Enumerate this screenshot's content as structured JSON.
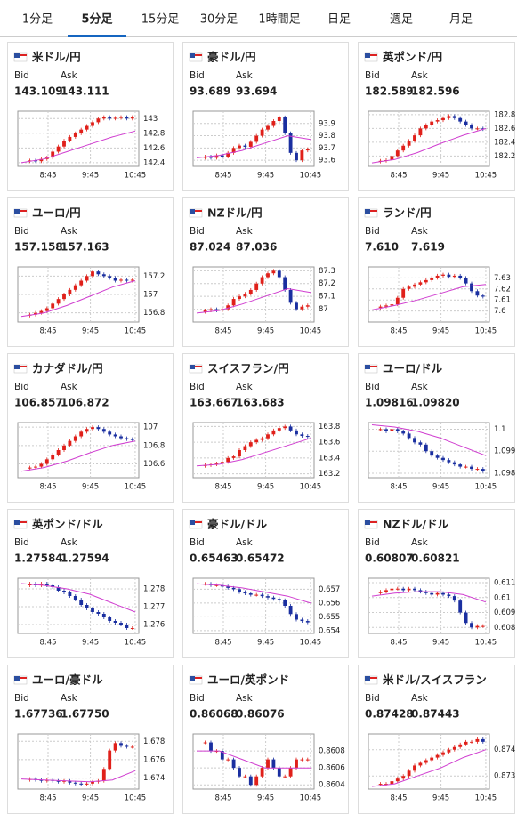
{
  "tabs": {
    "items": [
      "1分足",
      "5分足",
      "15分足",
      "30分足",
      "1時間足",
      "日足",
      "週足",
      "月足"
    ],
    "active": 1
  },
  "labels": {
    "bid": "Bid",
    "ask": "Ask"
  },
  "time_ticks": [
    "8:45",
    "9:45",
    "10:45"
  ],
  "cards": [
    {
      "name": "米ドル/円",
      "color": "#6a2c9a",
      "bid": "143.109",
      "ask": "143.111",
      "ylim": [
        142.35,
        143.1
      ],
      "yticks": [
        142.4,
        142.6,
        142.8,
        143
      ],
      "closes": [
        142.42,
        142.43,
        142.42,
        142.45,
        142.47,
        142.55,
        142.62,
        142.7,
        142.75,
        142.8,
        142.85,
        142.9,
        142.95,
        143.0,
        143.02,
        143.0,
        143.01,
        143.02,
        143.0,
        143.02
      ],
      "ma": [
        142.4,
        142.45,
        142.55,
        142.65,
        142.75,
        142.83
      ]
    },
    {
      "name": "豪ドル/円",
      "color": "#6a2c9a",
      "bid": "93.689",
      "ask": "93.694",
      "ylim": [
        93.55,
        94.0
      ],
      "yticks": [
        93.6,
        93.7,
        93.8,
        93.9
      ],
      "closes": [
        93.62,
        93.63,
        93.62,
        93.64,
        93.63,
        93.66,
        93.7,
        93.72,
        93.71,
        93.75,
        93.8,
        93.85,
        93.88,
        93.92,
        93.95,
        93.82,
        93.66,
        93.6,
        93.68,
        93.69
      ],
      "ma": [
        93.62,
        93.64,
        93.68,
        93.74,
        93.8,
        93.77
      ]
    },
    {
      "name": "英ポンド/円",
      "color": "#6a2c9a",
      "bid": "182.589",
      "ask": "182.596",
      "ylim": [
        182.05,
        182.85
      ],
      "yticks": [
        182.2,
        182.4,
        182.6,
        182.8
      ],
      "closes": [
        182.12,
        182.13,
        182.14,
        182.2,
        182.28,
        182.35,
        182.42,
        182.5,
        182.6,
        182.65,
        182.7,
        182.72,
        182.75,
        182.78,
        182.75,
        182.7,
        182.65,
        182.6,
        182.6,
        182.59
      ],
      "ma": [
        182.1,
        182.15,
        182.25,
        182.38,
        182.5,
        182.6
      ]
    },
    {
      "name": "ユーロ/円",
      "color": "#6a2c9a",
      "bid": "157.158",
      "ask": "157.163",
      "ylim": [
        156.7,
        157.3
      ],
      "yticks": [
        156.8,
        157,
        157.2
      ],
      "closes": [
        156.77,
        156.78,
        156.8,
        156.82,
        156.85,
        156.9,
        156.95,
        157.0,
        157.05,
        157.1,
        157.15,
        157.2,
        157.25,
        157.22,
        157.2,
        157.18,
        157.15,
        157.16,
        157.15,
        157.16
      ],
      "ma": [
        156.76,
        156.8,
        156.88,
        156.98,
        157.08,
        157.15
      ]
    },
    {
      "name": "NZドル/円",
      "color": "#1a4d9c",
      "bid": "87.024",
      "ask": "87.036",
      "ylim": [
        86.9,
        87.33
      ],
      "yticks": [
        87,
        87.1,
        87.2,
        87.3
      ],
      "closes": [
        86.98,
        86.99,
        87.0,
        86.99,
        87.0,
        87.03,
        87.08,
        87.1,
        87.12,
        87.15,
        87.2,
        87.25,
        87.28,
        87.3,
        87.25,
        87.15,
        87.05,
        87.0,
        87.02,
        87.03
      ],
      "ma": [
        86.97,
        86.99,
        87.04,
        87.1,
        87.16,
        87.13
      ]
    },
    {
      "name": "ランド/円",
      "color": "#6a2c9a",
      "bid": "7.610",
      "ask": "7.619",
      "ylim": [
        7.59,
        7.64
      ],
      "yticks": [
        7.6,
        7.61,
        7.62,
        7.63
      ],
      "closes": [
        7.603,
        7.604,
        7.605,
        7.606,
        7.612,
        7.62,
        7.622,
        7.624,
        7.626,
        7.628,
        7.63,
        7.632,
        7.633,
        7.631,
        7.632,
        7.63,
        7.625,
        7.618,
        7.614,
        7.613
      ],
      "ma": [
        7.601,
        7.605,
        7.61,
        7.616,
        7.622,
        7.624
      ]
    },
    {
      "name": "カナダドル/円",
      "color": "#6a2c9a",
      "bid": "106.857",
      "ask": "106.872",
      "ylim": [
        106.45,
        107.05
      ],
      "yticks": [
        106.6,
        106.8,
        107
      ],
      "closes": [
        106.55,
        106.56,
        106.57,
        106.6,
        106.65,
        106.7,
        106.75,
        106.8,
        106.85,
        106.9,
        106.95,
        106.98,
        107.0,
        106.98,
        106.95,
        106.92,
        106.9,
        106.88,
        106.87,
        106.86
      ],
      "ma": [
        106.52,
        106.56,
        106.63,
        106.72,
        106.8,
        106.85
      ]
    },
    {
      "name": "スイスフラン/円",
      "color": "#1a4d9c",
      "bid": "163.667",
      "ask": "163.683",
      "ylim": [
        163.15,
        163.85
      ],
      "yticks": [
        163.2,
        163.4,
        163.6,
        163.8
      ],
      "closes": [
        163.3,
        163.31,
        163.32,
        163.33,
        163.35,
        163.4,
        163.42,
        163.5,
        163.55,
        163.6,
        163.63,
        163.65,
        163.7,
        163.75,
        163.78,
        163.8,
        163.75,
        163.7,
        163.68,
        163.67
      ],
      "ma": [
        163.3,
        163.32,
        163.38,
        163.47,
        163.56,
        163.65
      ]
    },
    {
      "name": "ユーロ/ドル",
      "color": "#6a2c9a",
      "bid": "1.09816",
      "ask": "1.09820",
      "ylim": [
        1.0978,
        1.1003
      ],
      "yticks": [
        1.098,
        1.099,
        1.1
      ],
      "closes": [
        1.1,
        1.1,
        1.0999,
        1.1,
        1.0999,
        1.0998,
        1.0996,
        1.0994,
        1.0993,
        1.099,
        1.0988,
        1.0987,
        1.0986,
        1.0985,
        1.0984,
        1.0983,
        1.0983,
        1.0982,
        1.0982,
        1.0981
      ],
      "ma": [
        1.1002,
        1.1001,
        1.0999,
        1.0996,
        1.0992,
        1.0988
      ]
    },
    {
      "name": "英ポンド/ドル",
      "color": "#1a4d9c",
      "bid": "1.27584",
      "ask": "1.27594",
      "ylim": [
        1.2755,
        1.2786
      ],
      "yticks": [
        1.276,
        1.277,
        1.278
      ],
      "closes": [
        1.2782,
        1.2783,
        1.2782,
        1.2783,
        1.2782,
        1.2781,
        1.2779,
        1.2778,
        1.2776,
        1.2774,
        1.2771,
        1.2769,
        1.2767,
        1.2766,
        1.2764,
        1.2762,
        1.2761,
        1.276,
        1.2758,
        1.2758
      ],
      "ma": [
        1.2783,
        1.2782,
        1.278,
        1.2777,
        1.2772,
        1.2767
      ]
    },
    {
      "name": "豪ドル/ドル",
      "color": "#1a4d9c",
      "bid": "0.65463",
      "ask": "0.65472",
      "ylim": [
        0.6538,
        0.6578
      ],
      "yticks": [
        0.654,
        0.655,
        0.656,
        0.657
      ],
      "closes": [
        0.6574,
        0.6574,
        0.6573,
        0.6573,
        0.6572,
        0.6571,
        0.657,
        0.6568,
        0.6567,
        0.6566,
        0.6566,
        0.6565,
        0.6564,
        0.6563,
        0.6562,
        0.6558,
        0.6552,
        0.6548,
        0.6547,
        0.6546
      ],
      "ma": [
        0.6574,
        0.6573,
        0.6571,
        0.6568,
        0.6565,
        0.656
      ]
    },
    {
      "name": "NZドル/ドル",
      "color": "#1a4d9c",
      "bid": "0.60807",
      "ask": "0.60821",
      "ylim": [
        0.6076,
        0.6113
      ],
      "yticks": [
        0.608,
        0.609,
        0.61,
        0.611
      ],
      "closes": [
        0.6103,
        0.6104,
        0.6105,
        0.6106,
        0.6106,
        0.6105,
        0.6106,
        0.6105,
        0.6104,
        0.6103,
        0.6102,
        0.6103,
        0.6102,
        0.6101,
        0.6098,
        0.609,
        0.6083,
        0.608,
        0.6081,
        0.6081
      ],
      "ma": [
        0.6101,
        0.6103,
        0.6104,
        0.6104,
        0.6102,
        0.6097
      ]
    },
    {
      "name": "ユーロ/豪ドル",
      "color": "#1a4d9c",
      "bid": "1.67736",
      "ask": "1.67750",
      "ylim": [
        1.6728,
        1.6788
      ],
      "yticks": [
        1.674,
        1.676,
        1.678
      ],
      "closes": [
        1.6738,
        1.6739,
        1.6738,
        1.6737,
        1.6738,
        1.6737,
        1.6736,
        1.6737,
        1.6735,
        1.6734,
        1.6733,
        1.6734,
        1.6736,
        1.6737,
        1.675,
        1.677,
        1.6778,
        1.6775,
        1.6774,
        1.6774
      ],
      "ma": [
        1.6739,
        1.6738,
        1.6737,
        1.6736,
        1.6738,
        1.6748
      ]
    },
    {
      "name": "ユーロ/英ポンド",
      "color": "#1a4d9c",
      "bid": "0.86068",
      "ask": "0.86076",
      "ylim": [
        0.86035,
        0.861
      ],
      "yticks": [
        0.8604,
        0.8606,
        0.8608
      ],
      "closes": [
        0.8609,
        0.8609,
        0.8608,
        0.8608,
        0.8607,
        0.8607,
        0.8606,
        0.8605,
        0.8605,
        0.8604,
        0.8605,
        0.8606,
        0.8607,
        0.8606,
        0.8605,
        0.8605,
        0.8606,
        0.8607,
        0.8607,
        0.8607
      ],
      "ma": [
        0.8608,
        0.8608,
        0.8607,
        0.8606,
        0.8606,
        0.8606
      ]
    },
    {
      "name": "米ドル/スイスフラン",
      "color": "#1a4d9c",
      "bid": "0.87428",
      "ask": "0.87443",
      "ylim": [
        0.8725,
        0.8746
      ],
      "yticks": [
        0.873,
        0.874
      ],
      "closes": [
        0.8727,
        0.8727,
        0.8727,
        0.8728,
        0.8729,
        0.873,
        0.8732,
        0.8734,
        0.8735,
        0.8736,
        0.8737,
        0.8738,
        0.8739,
        0.874,
        0.8741,
        0.8742,
        0.8743,
        0.8743,
        0.8744,
        0.8743
      ],
      "ma": [
        0.8726,
        0.8727,
        0.873,
        0.8733,
        0.8737,
        0.874
      ]
    }
  ]
}
